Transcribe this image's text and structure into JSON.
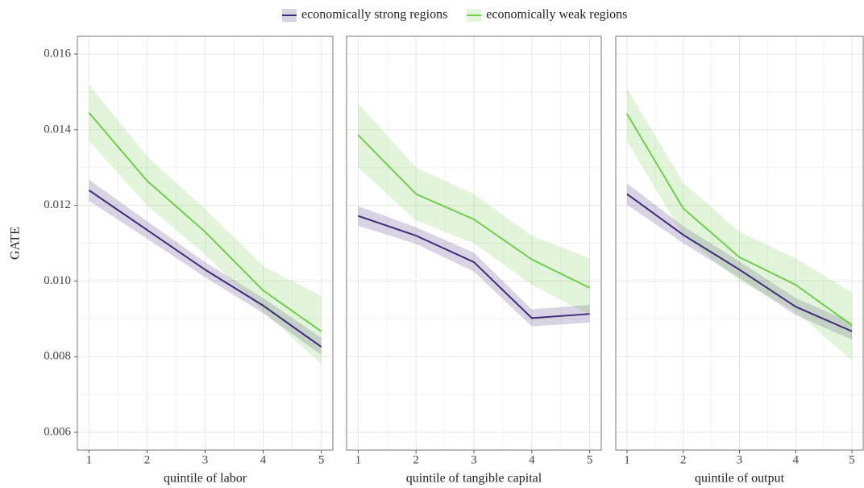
{
  "chart_data": [
    {
      "type": "line",
      "y_label": "GATE",
      "x_label": "quintile of labor",
      "x": [
        1,
        2,
        3,
        4,
        5
      ],
      "xlim": [
        0.8,
        5.2
      ],
      "xticks": [
        1,
        2,
        3,
        4,
        5
      ],
      "ylim": [
        0.00553,
        0.01647
      ],
      "yticks": [
        0.006,
        0.008,
        {
          "value": 0.01,
          "label": "0.010"
        },
        0.012,
        0.014,
        0.016
      ],
      "grid": true,
      "legend": "top",
      "series": [
        {
          "name": "economically strong regions",
          "color": "#3f2a78",
          "values": [
            0.0124,
            0.01135,
            0.0103,
            0.00935,
            0.00826
          ],
          "upper": [
            0.01268,
            0.01158,
            0.0105,
            0.00955,
            0.0085
          ],
          "lower": [
            0.01212,
            0.01112,
            0.0101,
            0.00915,
            0.00805
          ]
        },
        {
          "name": "economically weak regions",
          "color": "#6fce4a",
          "values": [
            0.01445,
            0.01265,
            0.0113,
            0.00975,
            0.00867
          ],
          "upper": [
            0.0152,
            0.0133,
            0.0119,
            0.0104,
            0.0096
          ],
          "lower": [
            0.0137,
            0.012,
            0.0107,
            0.0092,
            0.0078
          ]
        }
      ]
    },
    {
      "type": "line",
      "x_label": "quintile of tangible capital",
      "x": [
        1,
        2,
        3,
        4,
        5
      ],
      "xlim": [
        0.8,
        5.2
      ],
      "xticks": [
        1,
        2,
        3,
        4,
        5
      ],
      "ylim": [
        0.00553,
        0.01647
      ],
      "grid": true,
      "series": [
        {
          "name": "economically strong regions",
          "color": "#3f2a78",
          "values": [
            0.01172,
            0.0112,
            0.0105,
            0.00902,
            0.00913
          ],
          "upper": [
            0.01198,
            0.01142,
            0.01075,
            0.00925,
            0.00937
          ],
          "lower": [
            0.01146,
            0.01098,
            0.01025,
            0.0088,
            0.0089
          ]
        },
        {
          "name": "economically weak regions",
          "color": "#6fce4a",
          "values": [
            0.01386,
            0.0123,
            0.01163,
            0.01057,
            0.00982
          ],
          "upper": [
            0.0147,
            0.013,
            0.0123,
            0.0112,
            0.0106
          ],
          "lower": [
            0.013,
            0.0116,
            0.011,
            0.0099,
            0.0091
          ]
        }
      ]
    },
    {
      "type": "line",
      "x_label": "quintile of output",
      "x": [
        1,
        2,
        3,
        4,
        5
      ],
      "xlim": [
        0.8,
        5.2
      ],
      "xticks": [
        1,
        2,
        3,
        4,
        5
      ],
      "ylim": [
        0.00553,
        0.01647
      ],
      "grid": true,
      "series": [
        {
          "name": "economically strong regions",
          "color": "#3f2a78",
          "values": [
            0.0123,
            0.01122,
            0.0103,
            0.00932,
            0.00867
          ],
          "upper": [
            0.01258,
            0.01145,
            0.01052,
            0.00955,
            0.0089
          ],
          "lower": [
            0.01202,
            0.011,
            0.01008,
            0.0091,
            0.00845
          ]
        },
        {
          "name": "economically weak regions",
          "color": "#6fce4a",
          "values": [
            0.01442,
            0.01192,
            0.01063,
            0.0099,
            0.00883
          ],
          "upper": [
            0.0151,
            0.0126,
            0.0113,
            0.0106,
            0.0097
          ],
          "lower": [
            0.0137,
            0.0112,
            0.01,
            0.0092,
            0.0079
          ]
        }
      ]
    }
  ]
}
